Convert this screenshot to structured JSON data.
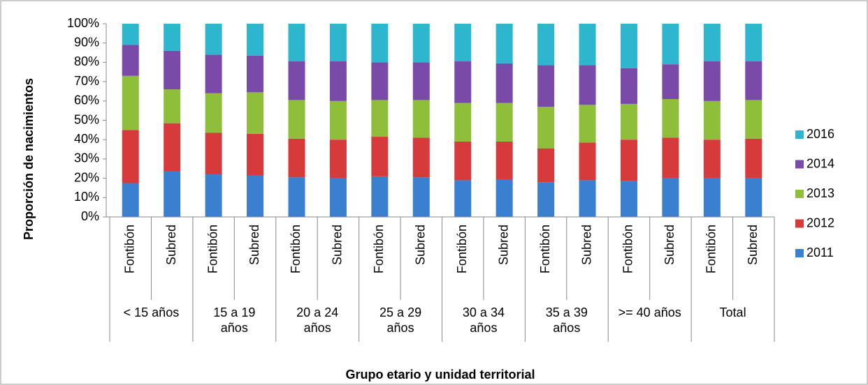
{
  "chart_data": {
    "type": "stacked_bar_100",
    "y_label": "Proporción de nacimientos",
    "x_label": "Grupo etario y unidad territorial",
    "categories": [
      "Fontibón",
      "Subred",
      "Fontibón",
      "Subred",
      "Fontibón",
      "Subred",
      "Fontibón",
      "Subred",
      "Fontibón",
      "Subred",
      "Fontibón",
      "Subred",
      "Fontibón",
      "Subred",
      "Fontibón",
      "Subred"
    ],
    "groups": [
      "< 15 años",
      "15 a 19 años",
      "20 a 24 años",
      "25 a 29 años",
      "30 a 34 años",
      "35 a 39 años",
      ">= 40 años",
      "Total"
    ],
    "series": [
      {
        "name": "2011",
        "color": "#3a7fd0",
        "values": [
          17.5,
          23.5,
          22,
          21.5,
          20.5,
          20,
          21,
          20.5,
          19,
          19.5,
          18,
          19,
          18.5,
          20,
          20,
          20
        ]
      },
      {
        "name": "2012",
        "color": "#d63a3a",
        "values": [
          27.5,
          25,
          21.5,
          21.5,
          20,
          20,
          20.5,
          20.5,
          20,
          19.5,
          17.5,
          19.5,
          21.5,
          21,
          20,
          20.5
        ]
      },
      {
        "name": "2013",
        "color": "#8fbf3a",
        "values": [
          28,
          17.5,
          20.5,
          21.5,
          20,
          20,
          19,
          19.5,
          20,
          20,
          21.5,
          19.5,
          18.5,
          20,
          20,
          20
        ]
      },
      {
        "name": "2014",
        "color": "#7a4aa8",
        "values": [
          16,
          20,
          20,
          19,
          20,
          20.5,
          19.5,
          19.5,
          21.5,
          20.5,
          21.5,
          20.5,
          18.5,
          18,
          20.5,
          20
        ]
      },
      {
        "name": "2016",
        "color": "#2eb6cf",
        "values": [
          11,
          14,
          16,
          16.5,
          19.5,
          19.5,
          20,
          20,
          19.5,
          20.5,
          21.5,
          21.5,
          23,
          21,
          19.5,
          19.5
        ]
      }
    ],
    "ylim": [
      0,
      100
    ],
    "yticks": [
      {
        "value": 0,
        "label": "0%"
      },
      {
        "value": 10,
        "label": "10%"
      },
      {
        "value": 20,
        "label": "20%"
      },
      {
        "value": 30,
        "label": "30%"
      },
      {
        "value": 40,
        "label": "40%"
      },
      {
        "value": 50,
        "label": "50%"
      },
      {
        "value": 60,
        "label": "60%"
      },
      {
        "value": 70,
        "label": "70%"
      },
      {
        "value": 80,
        "label": "80%"
      },
      {
        "value": 90,
        "label": "90%"
      },
      {
        "value": 100,
        "label": "100%"
      }
    ],
    "legend": "right"
  }
}
